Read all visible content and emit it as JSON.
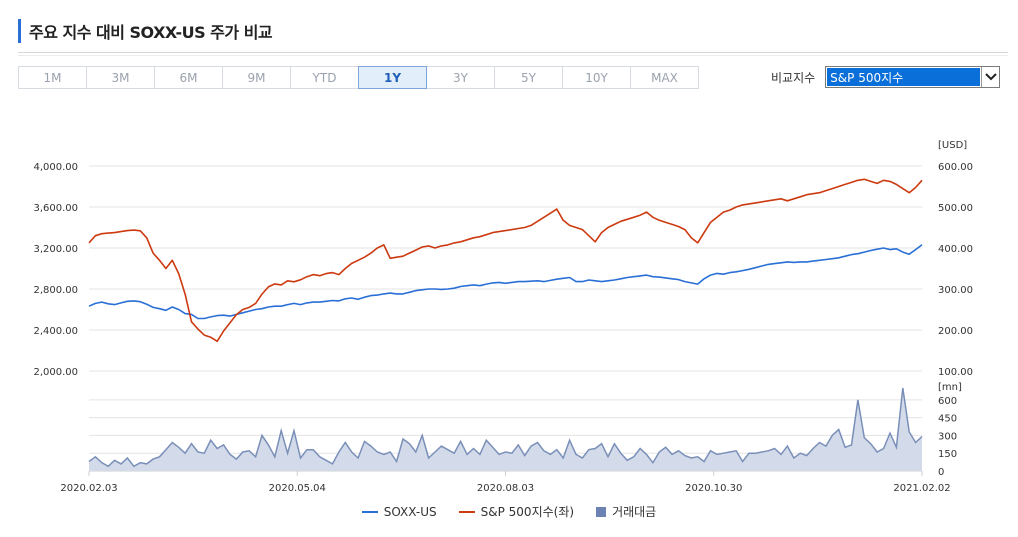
{
  "header": {
    "title": "주요 지수 대비 SOXX-US 주가 비교"
  },
  "periods": [
    {
      "label": "1M",
      "active": false
    },
    {
      "label": "3M",
      "active": false
    },
    {
      "label": "6M",
      "active": false
    },
    {
      "label": "9M",
      "active": false
    },
    {
      "label": "YTD",
      "active": false
    },
    {
      "label": "1Y",
      "active": true
    },
    {
      "label": "3Y",
      "active": false
    },
    {
      "label": "5Y",
      "active": false
    },
    {
      "label": "10Y",
      "active": false
    },
    {
      "label": "MAX",
      "active": false
    }
  ],
  "compare": {
    "label": "비교지수",
    "selected": "S&P 500지수"
  },
  "chart_data": {
    "type": "line",
    "x_ticks": [
      "2020.02.03",
      "2020.05.04",
      "2020.08.03",
      "2020.10.30",
      "2021.02.02"
    ],
    "left_axis": {
      "ticks": [
        "4,000.00",
        "3,600.00",
        "3,200.00",
        "2,800.00",
        "2,400.00",
        "2,000.00"
      ],
      "ylim": [
        2000,
        4000
      ]
    },
    "right_axis": {
      "unit": "[USD]",
      "ticks": [
        "600.00",
        "500.00",
        "400.00",
        "300.00",
        "200.00",
        "100.00"
      ],
      "ylim": [
        100,
        600
      ]
    },
    "volume_axis": {
      "unit": "[mn]",
      "ticks": [
        "600",
        "450",
        "300",
        "150",
        "0"
      ],
      "ylim": [
        0,
        700
      ]
    },
    "series": [
      {
        "name": "SOXX-US",
        "axis": "right",
        "color": "#2a6fd6",
        "values": [
          258,
          265,
          268,
          264,
          262,
          266,
          270,
          271,
          269,
          263,
          255,
          252,
          248,
          256,
          250,
          240,
          238,
          228,
          228,
          232,
          235,
          236,
          234,
          238,
          242,
          246,
          250,
          252,
          256,
          258,
          258,
          262,
          265,
          262,
          266,
          268,
          268,
          270,
          272,
          271,
          276,
          278,
          275,
          280,
          284,
          285,
          288,
          290,
          288,
          288,
          292,
          296,
          298,
          300,
          300,
          299,
          300,
          302,
          306,
          308,
          310,
          308,
          312,
          315,
          316,
          314,
          316,
          318,
          318,
          319,
          320,
          318,
          321,
          324,
          326,
          328,
          318,
          318,
          322,
          320,
          318,
          320,
          322,
          325,
          328,
          330,
          332,
          334,
          330,
          329,
          327,
          325,
          323,
          318,
          315,
          312,
          325,
          334,
          338,
          336,
          340,
          342,
          345,
          348,
          352,
          356,
          360,
          362,
          364,
          366,
          365,
          366,
          366,
          368,
          370,
          372,
          374,
          376,
          380,
          384,
          386,
          390,
          394,
          397,
          400,
          396,
          398,
          390,
          385,
          396,
          408
        ]
      },
      {
        "name": "S&P 500지수(좌)",
        "axis": "left",
        "color": "#cc3a10",
        "values": [
          3250,
          3320,
          3340,
          3345,
          3350,
          3360,
          3370,
          3375,
          3368,
          3300,
          3150,
          3080,
          3000,
          3080,
          2950,
          2750,
          2480,
          2410,
          2350,
          2330,
          2290,
          2390,
          2470,
          2550,
          2600,
          2620,
          2660,
          2750,
          2820,
          2850,
          2840,
          2880,
          2870,
          2890,
          2920,
          2940,
          2930,
          2950,
          2960,
          2940,
          3000,
          3050,
          3080,
          3110,
          3150,
          3200,
          3230,
          3100,
          3110,
          3120,
          3150,
          3180,
          3210,
          3220,
          3200,
          3220,
          3230,
          3250,
          3260,
          3280,
          3300,
          3310,
          3330,
          3350,
          3360,
          3370,
          3380,
          3390,
          3400,
          3420,
          3460,
          3500,
          3540,
          3580,
          3470,
          3420,
          3400,
          3380,
          3320,
          3260,
          3350,
          3400,
          3430,
          3460,
          3480,
          3500,
          3520,
          3550,
          3500,
          3470,
          3450,
          3430,
          3410,
          3380,
          3300,
          3250,
          3350,
          3450,
          3500,
          3550,
          3570,
          3600,
          3620,
          3630,
          3640,
          3650,
          3660,
          3670,
          3680,
          3660,
          3680,
          3700,
          3720,
          3730,
          3740,
          3760,
          3780,
          3800,
          3820,
          3840,
          3860,
          3870,
          3850,
          3830,
          3860,
          3850,
          3820,
          3780,
          3740,
          3790,
          3860
        ]
      },
      {
        "name": "거래대금",
        "axis": "volume",
        "type": "area",
        "color": "#7a8fb8",
        "values": [
          80,
          120,
          70,
          40,
          90,
          60,
          110,
          40,
          70,
          60,
          100,
          120,
          180,
          240,
          200,
          150,
          230,
          160,
          150,
          260,
          190,
          220,
          140,
          100,
          160,
          170,
          120,
          300,
          220,
          120,
          340,
          150,
          340,
          110,
          180,
          180,
          120,
          90,
          60,
          160,
          240,
          160,
          110,
          250,
          210,
          160,
          140,
          160,
          80,
          270,
          230,
          160,
          300,
          110,
          160,
          210,
          180,
          150,
          250,
          140,
          190,
          140,
          260,
          200,
          140,
          160,
          150,
          220,
          130,
          210,
          240,
          170,
          140,
          180,
          110,
          260,
          140,
          110,
          180,
          190,
          230,
          120,
          230,
          150,
          90,
          120,
          190,
          140,
          70,
          160,
          200,
          140,
          170,
          130,
          110,
          120,
          80,
          170,
          140,
          150,
          160,
          170,
          80,
          150,
          150,
          160,
          170,
          190,
          140,
          210,
          110,
          150,
          130,
          190,
          240,
          210,
          300,
          350,
          200,
          220,
          600,
          280,
          230,
          160,
          190,
          320,
          200,
          700,
          330,
          240,
          290
        ]
      }
    ],
    "legend": [
      {
        "label": "SOXX-US",
        "color": "#2a6fd6",
        "type": "line"
      },
      {
        "label": "S&P 500지수(좌)",
        "color": "#cc3a10",
        "type": "line"
      },
      {
        "label": "거래대금",
        "color": "#6b82b3",
        "type": "box"
      }
    ]
  }
}
